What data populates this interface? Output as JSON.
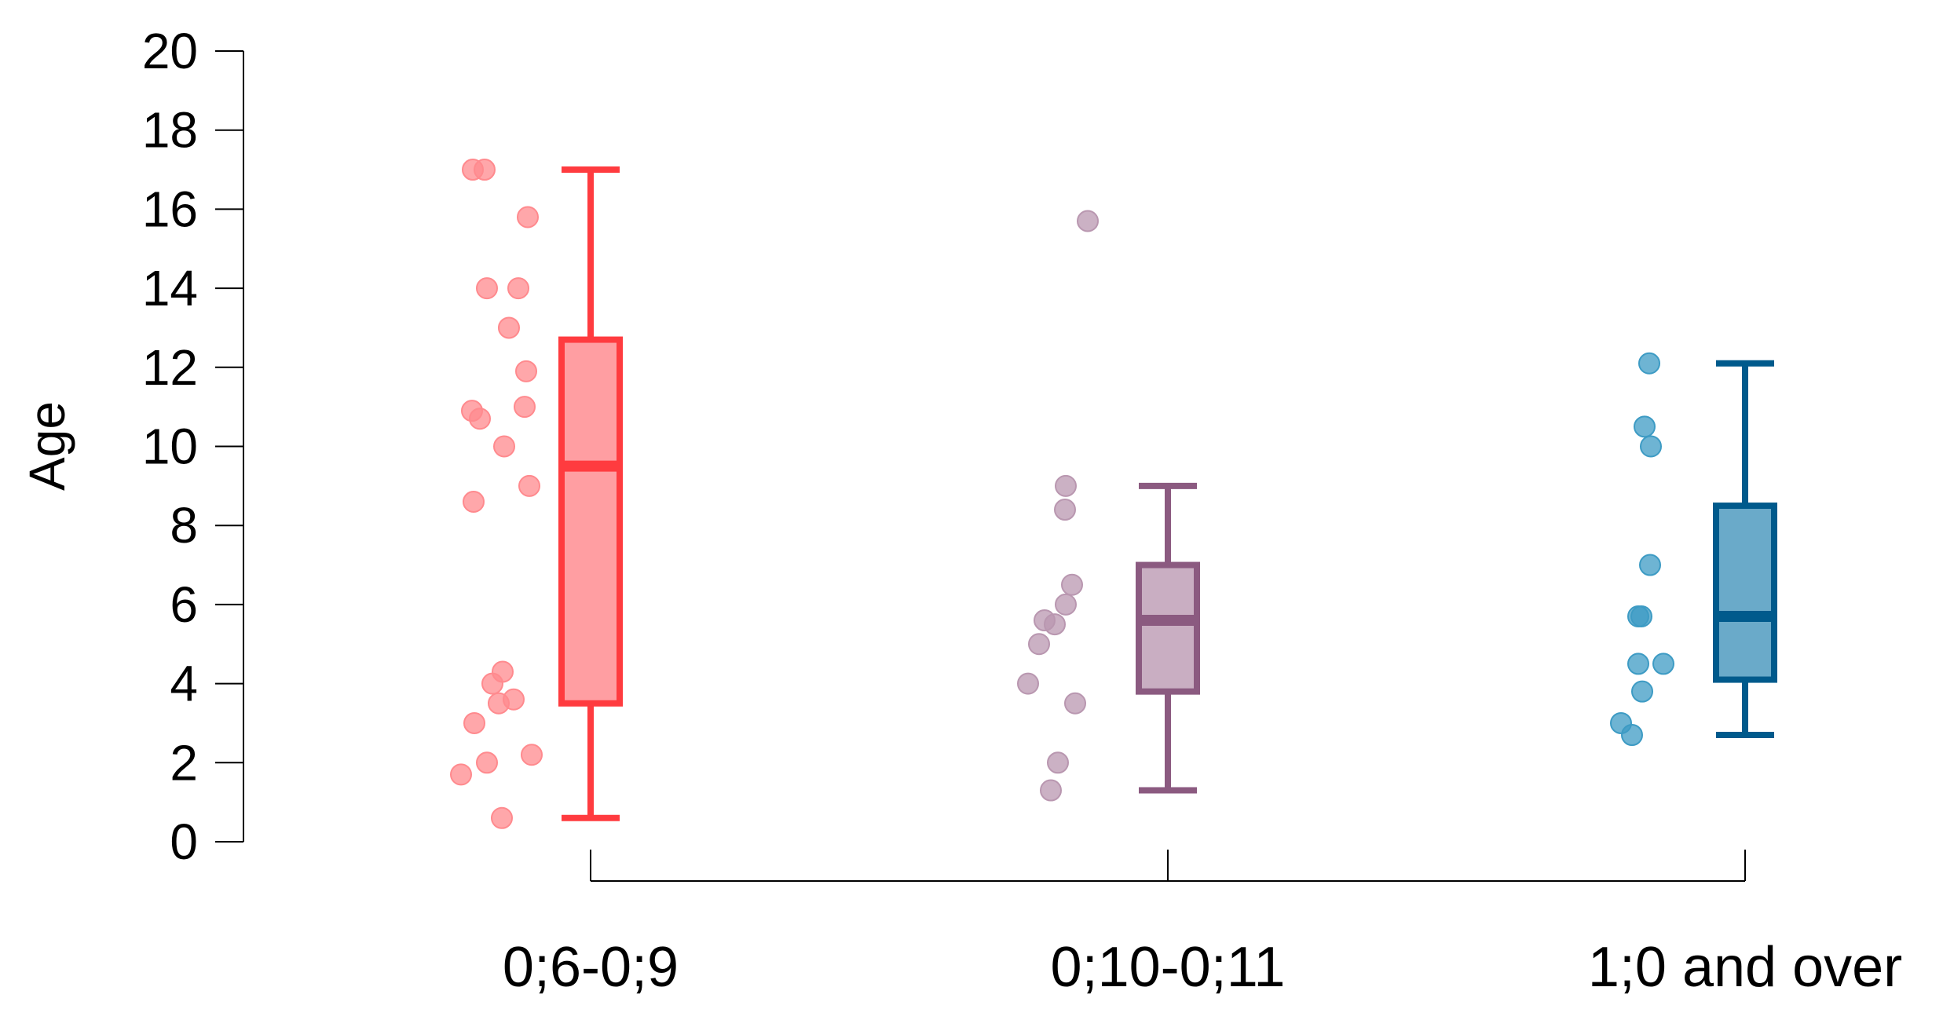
{
  "chart_data": {
    "type": "box",
    "ylabel": "Age",
    "xlabel": "",
    "ylim": [
      0,
      20
    ],
    "yticks": [
      0,
      2,
      4,
      6,
      8,
      10,
      12,
      14,
      16,
      18,
      20
    ],
    "grid": false,
    "categories": [
      "0;6-0;9",
      "0;10-0;11",
      "1;0 and over"
    ],
    "groups": [
      {
        "category": "0;6-0;9",
        "color": "#ff3b3f",
        "fill": "#ff9ea2",
        "point_color": "#ff8a8e",
        "box": {
          "min": 0.6,
          "q1": 3.5,
          "median": 9.5,
          "q3": 12.7,
          "max": 17.0
        },
        "points": [
          17.0,
          17.0,
          15.8,
          14.0,
          14.0,
          13.0,
          11.9,
          11.0,
          10.9,
          10.7,
          10.0,
          9.0,
          8.6,
          4.3,
          4.0,
          3.6,
          3.5,
          3.0,
          2.2,
          2.0,
          1.7,
          0.6
        ]
      },
      {
        "category": "0;10-0;11",
        "color": "#8b5a80",
        "fill": "#c9aec2",
        "point_color": "#b997b0",
        "box": {
          "min": 1.3,
          "q1": 3.8,
          "median": 5.6,
          "q3": 7.0,
          "max": 9.0
        },
        "points": [
          15.7,
          9.0,
          8.4,
          6.5,
          6.0,
          5.6,
          5.5,
          5.0,
          4.0,
          3.5,
          2.0,
          1.3
        ]
      },
      {
        "category": "1;0 and over",
        "color": "#005a8c",
        "fill": "#6aaac9",
        "point_color": "#3d9bc4",
        "box": {
          "min": 2.7,
          "q1": 4.1,
          "median": 5.7,
          "q3": 8.5,
          "max": 12.1
        },
        "points": [
          12.1,
          10.5,
          10.0,
          7.0,
          5.7,
          5.7,
          4.5,
          4.5,
          3.8,
          3.0,
          2.7
        ]
      }
    ]
  }
}
